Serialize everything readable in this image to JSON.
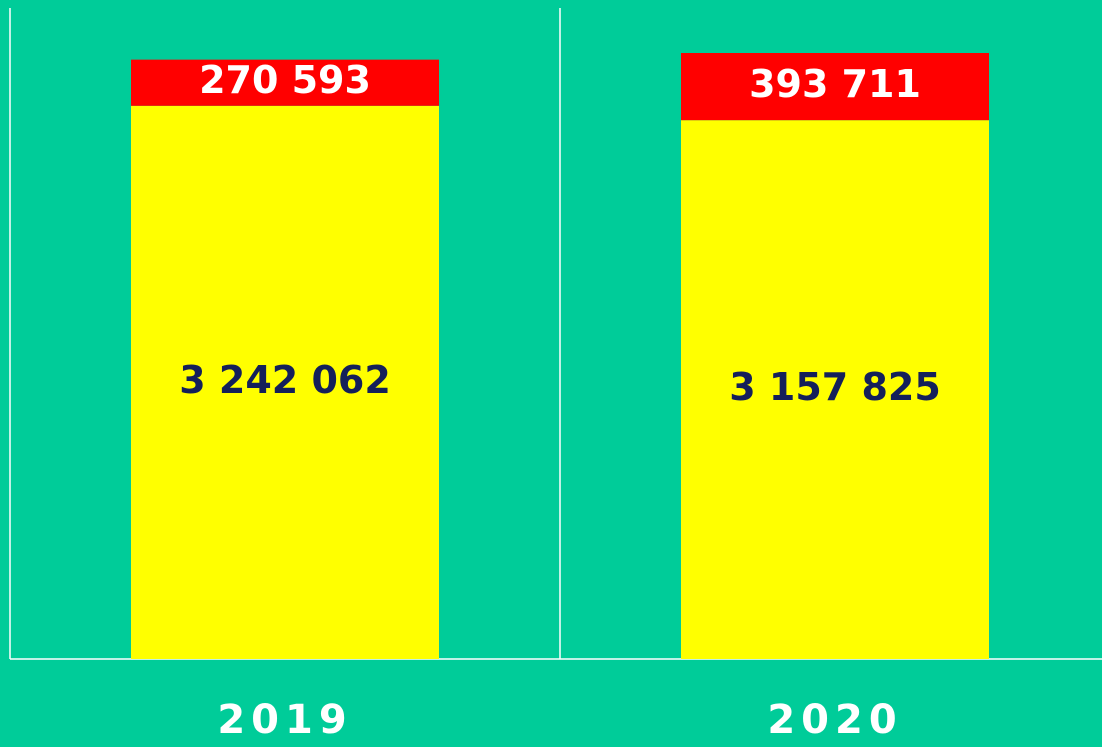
{
  "chart_data": {
    "type": "stacked_bar",
    "categories": [
      "2019",
      "2020"
    ],
    "series": [
      {
        "color": "#ffff00",
        "values": [
          3242062,
          3157825
        ],
        "value_labels": [
          "3 242 062",
          "3 157 825"
        ]
      },
      {
        "color": "#ff0000",
        "values": [
          270593,
          393711
        ],
        "value_labels": [
          "270 593",
          "393 711"
        ]
      }
    ]
  }
}
